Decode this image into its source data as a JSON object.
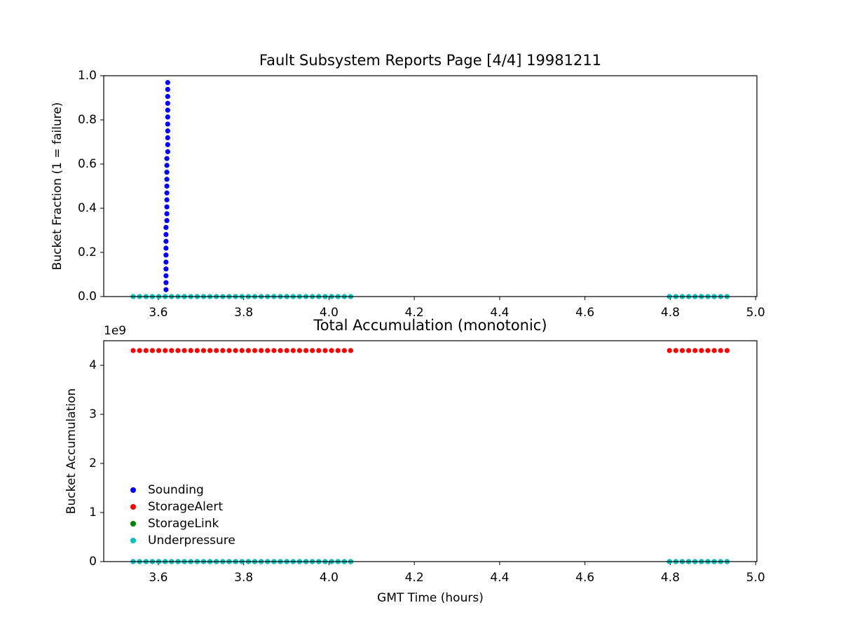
{
  "chart_data": [
    {
      "type": "scatter",
      "title": "Fault Subsystem Reports Page [4/4] 19981211",
      "y_label": "Bucket Fraction (1 = failure)",
      "xlim": [
        3.472,
        5.003
      ],
      "ylim": [
        0,
        1
      ],
      "xticks": [
        3.6,
        3.8,
        {
          "value": 4,
          "label": "4.0"
        },
        4.2,
        4.4,
        4.6,
        4.8,
        {
          "value": 5,
          "label": "5.0"
        }
      ],
      "yticks": [
        {
          "value": 0,
          "label": "0.0"
        },
        0.2,
        0.4,
        0.6,
        0.8,
        {
          "value": 1,
          "label": "1.0"
        }
      ],
      "grid": false,
      "series": [
        {
          "name": "Sounding",
          "color": "#0000ff",
          "x": [
            3.618,
            3.618,
            3.618,
            3.618,
            3.618,
            3.618,
            3.618,
            3.618,
            3.618,
            3.618,
            3.62,
            3.62,
            3.62,
            3.62,
            3.62,
            3.62,
            3.62,
            3.62,
            3.62,
            3.62,
            3.622,
            3.622,
            3.622,
            3.622,
            3.622,
            3.622,
            3.622,
            3.622,
            3.622,
            3.622,
            3.622
          ],
          "values": [
            0.031,
            0.063,
            0.094,
            0.125,
            0.156,
            0.188,
            0.219,
            0.25,
            0.281,
            0.313,
            0.344,
            0.375,
            0.406,
            0.438,
            0.469,
            0.5,
            0.531,
            0.563,
            0.594,
            0.625,
            0.656,
            0.688,
            0.719,
            0.75,
            0.781,
            0.813,
            0.844,
            0.875,
            0.906,
            0.938,
            0.969
          ]
        },
        {
          "name": "StorageLink",
          "color": "#008000",
          "x": [
            3.541,
            3.556,
            3.571,
            3.586,
            3.601,
            3.616,
            3.631,
            3.646,
            3.661,
            3.676,
            3.691,
            3.706,
            3.721,
            3.736,
            3.751,
            3.766,
            3.781,
            3.796,
            3.811,
            3.826,
            3.841,
            3.856,
            3.871,
            3.886,
            3.901,
            3.916,
            3.931,
            3.946,
            3.961,
            3.976,
            3.991,
            4.006,
            4.021,
            4.036,
            4.051,
            4.798,
            4.813,
            4.828,
            4.843,
            4.858,
            4.873,
            4.888,
            4.903,
            4.918,
            4.933
          ],
          "values": [
            0,
            0,
            0,
            0,
            0,
            0,
            0,
            0,
            0,
            0,
            0,
            0,
            0,
            0,
            0,
            0,
            0,
            0,
            0,
            0,
            0,
            0,
            0,
            0,
            0,
            0,
            0,
            0,
            0,
            0,
            0,
            0,
            0,
            0,
            0,
            0,
            0,
            0,
            0,
            0,
            0,
            0,
            0,
            0,
            0
          ]
        },
        {
          "name": "Underpressure",
          "color": "#00bfbf",
          "x": [
            3.541,
            3.556,
            3.571,
            3.586,
            3.601,
            3.616,
            3.631,
            3.646,
            3.661,
            3.676,
            3.691,
            3.706,
            3.721,
            3.736,
            3.751,
            3.766,
            3.781,
            3.796,
            3.811,
            3.826,
            3.841,
            3.856,
            3.871,
            3.886,
            3.901,
            3.916,
            3.931,
            3.946,
            3.961,
            3.976,
            3.991,
            4.006,
            4.021,
            4.036,
            4.051,
            4.798,
            4.813,
            4.828,
            4.843,
            4.858,
            4.873,
            4.888,
            4.903,
            4.918,
            4.933
          ],
          "values": [
            0,
            0,
            0,
            0,
            0,
            0,
            0,
            0,
            0,
            0,
            0,
            0,
            0,
            0,
            0,
            0,
            0,
            0,
            0,
            0,
            0,
            0,
            0,
            0,
            0,
            0,
            0,
            0,
            0,
            0,
            0,
            0,
            0,
            0,
            0,
            0,
            0,
            0,
            0,
            0,
            0,
            0,
            0,
            0,
            0
          ]
        }
      ]
    },
    {
      "type": "scatter",
      "title": "Total Accumulation (monotonic)",
      "x_label": "GMT Time (hours)",
      "y_label": "Bucket Accumulation",
      "offset_text": "1e9",
      "xlim": [
        3.472,
        5.003
      ],
      "ylim": [
        0,
        4500000000
      ],
      "xticks": [
        3.6,
        3.8,
        {
          "value": 4,
          "label": "4.0"
        },
        4.2,
        4.4,
        4.6,
        4.8,
        {
          "value": 5,
          "label": "5.0"
        }
      ],
      "yticks": [
        0,
        {
          "value": 1000000000,
          "label": "1"
        },
        {
          "value": 2000000000,
          "label": "2"
        },
        {
          "value": 3000000000,
          "label": "3"
        },
        {
          "value": 4000000000,
          "label": "4"
        }
      ],
      "grid": false,
      "legend": "lower left",
      "x": [
        3.541,
        3.556,
        3.571,
        3.586,
        3.601,
        3.616,
        3.631,
        3.646,
        3.661,
        3.676,
        3.691,
        3.706,
        3.721,
        3.736,
        3.751,
        3.766,
        3.781,
        3.796,
        3.811,
        3.826,
        3.841,
        3.856,
        3.871,
        3.886,
        3.901,
        3.916,
        3.931,
        3.946,
        3.961,
        3.976,
        3.991,
        4.006,
        4.021,
        4.036,
        4.051,
        4.798,
        4.813,
        4.828,
        4.843,
        4.858,
        4.873,
        4.888,
        4.903,
        4.918,
        4.933
      ],
      "series": [
        {
          "name": "Sounding",
          "color": "#0000ff",
          "values": [
            0,
            0,
            0,
            0,
            0,
            0,
            0,
            0,
            0,
            0,
            0,
            0,
            0,
            0,
            0,
            0,
            0,
            0,
            0,
            0,
            0,
            0,
            0,
            0,
            0,
            0,
            0,
            0,
            0,
            0,
            0,
            0,
            0,
            0,
            0,
            0,
            0,
            0,
            0,
            0,
            0,
            0,
            0,
            0,
            0
          ]
        },
        {
          "name": "StorageAlert",
          "color": "#ff0000",
          "values": [
            4300000000,
            4300000000,
            4300000000,
            4300000000,
            4300000000,
            4300000000,
            4300000000,
            4300000000,
            4300000000,
            4300000000,
            4300000000,
            4300000000,
            4300000000,
            4300000000,
            4300000000,
            4300000000,
            4300000000,
            4300000000,
            4300000000,
            4300000000,
            4300000000,
            4300000000,
            4300000000,
            4300000000,
            4300000000,
            4300000000,
            4300000000,
            4300000000,
            4300000000,
            4300000000,
            4300000000,
            4300000000,
            4300000000,
            4300000000,
            4300000000,
            4300000000,
            4300000000,
            4300000000,
            4300000000,
            4300000000,
            4300000000,
            4300000000,
            4300000000,
            4300000000,
            4300000000
          ]
        },
        {
          "name": "StorageLink",
          "color": "#008000",
          "values": [
            0,
            0,
            0,
            0,
            0,
            0,
            0,
            0,
            0,
            0,
            0,
            0,
            0,
            0,
            0,
            0,
            0,
            0,
            0,
            0,
            0,
            0,
            0,
            0,
            0,
            0,
            0,
            0,
            0,
            0,
            0,
            0,
            0,
            0,
            0,
            0,
            0,
            0,
            0,
            0,
            0,
            0,
            0,
            0,
            0
          ]
        },
        {
          "name": "Underpressure",
          "color": "#00bfbf",
          "values": [
            0,
            0,
            0,
            0,
            0,
            0,
            0,
            0,
            0,
            0,
            0,
            0,
            0,
            0,
            0,
            0,
            0,
            0,
            0,
            0,
            0,
            0,
            0,
            0,
            0,
            0,
            0,
            0,
            0,
            0,
            0,
            0,
            0,
            0,
            0,
            0,
            0,
            0,
            0,
            0,
            0,
            0,
            0,
            0,
            0
          ]
        }
      ]
    }
  ]
}
